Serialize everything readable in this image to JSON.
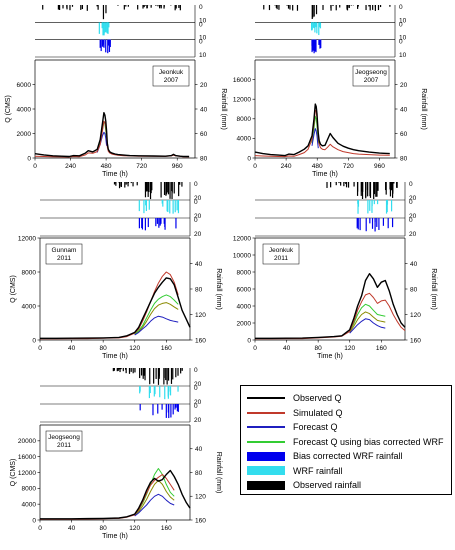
{
  "chart_data": [
    {
      "type": "line",
      "panel_label": [
        "Jeonkuk",
        "2007"
      ],
      "x": [
        0,
        60,
        120,
        180,
        230,
        260,
        300,
        340,
        360,
        390,
        420,
        440,
        455,
        465,
        472,
        478,
        483,
        488,
        495,
        505,
        520,
        540,
        560,
        600,
        640,
        700,
        800,
        880,
        920,
        935,
        950,
        980,
        1000,
        1040
      ],
      "xlim": [
        0,
        1080
      ],
      "xticks": [
        0,
        240,
        480,
        720,
        960
      ],
      "xlabel": "Time (h)",
      "ylim": [
        0,
        8000
      ],
      "yticks": [
        0,
        2000,
        4000,
        6000
      ],
      "ylabel": "Q (CMS)",
      "rain_ylim": [
        0,
        80
      ],
      "rain_ticks": [
        20,
        40,
        60,
        80
      ],
      "y2label": "Rainfall (mm)",
      "series": [
        {
          "name": "Observed Q",
          "color": "#000000",
          "values": [
            350,
            250,
            180,
            150,
            120,
            200,
            180,
            400,
            600,
            500,
            700,
            1500,
            2800,
            3700,
            3500,
            3000,
            2200,
            1200,
            700,
            500,
            400,
            330,
            280,
            240,
            200,
            180,
            160,
            150,
            200,
            300,
            200,
            150,
            130,
            120
          ]
        },
        {
          "name": "Simulated Q",
          "color": "#c0392b",
          "values": [
            150,
            120,
            100,
            90,
            80,
            120,
            110,
            250,
            420,
            380,
            520,
            1100,
            2200,
            3000,
            2900,
            2500,
            1800,
            900,
            550,
            400,
            320,
            260,
            220,
            190,
            170,
            150,
            140,
            130,
            170,
            240,
            170,
            130,
            110,
            100
          ]
        },
        {
          "name": "Forecast Q",
          "color": "#1f1fbf",
          "values": [
            null,
            null,
            null,
            null,
            null,
            null,
            null,
            null,
            null,
            null,
            450,
            1100,
            1800,
            2100,
            2000,
            1600,
            1000,
            null,
            null,
            null,
            null,
            null,
            null,
            null,
            null,
            null,
            null,
            null,
            null,
            null,
            null,
            null,
            null,
            null
          ]
        },
        {
          "name": "Forecast Q using bias corrected WRF",
          "color": "#33cc33",
          "values": [
            null,
            null,
            null,
            null,
            null,
            null,
            null,
            null,
            null,
            null,
            500,
            1300,
            2300,
            3000,
            2800,
            2200,
            1400,
            null,
            null,
            null,
            null,
            null,
            null,
            null,
            null,
            null,
            null,
            null,
            null,
            null,
            null,
            null,
            null,
            null
          ]
        }
      ]
    },
    {
      "type": "line",
      "panel_label": [
        "Jeogseong",
        "2007"
      ],
      "x": [
        0,
        60,
        120,
        180,
        230,
        260,
        300,
        340,
        380,
        410,
        440,
        455,
        465,
        472,
        478,
        483,
        488,
        495,
        505,
        520,
        540,
        560,
        580,
        600,
        640,
        680,
        720,
        760,
        800,
        880,
        960,
        1040
      ],
      "xlim": [
        0,
        1080
      ],
      "xticks": [
        0,
        240,
        480,
        720,
        960
      ],
      "xlabel": "Time (h)",
      "ylim": [
        0,
        20000
      ],
      "yticks": [
        0,
        4000,
        8000,
        12000,
        16000
      ],
      "ylabel": "",
      "rain_ylim": [
        0,
        80
      ],
      "rain_ticks": [
        20,
        40,
        60,
        80
      ],
      "y2label": "Rainfall (mm)",
      "series": [
        {
          "name": "Observed Q",
          "color": "#000000",
          "values": [
            1200,
            900,
            700,
            600,
            500,
            800,
            700,
            1200,
            1800,
            2500,
            4500,
            8000,
            11000,
            10500,
            9000,
            7000,
            5000,
            3500,
            2800,
            2500,
            2600,
            3800,
            5000,
            4200,
            3000,
            2400,
            2000,
            1700,
            1500,
            1200,
            1000,
            900
          ]
        },
        {
          "name": "Simulated Q",
          "color": "#c0392b",
          "values": [
            500,
            400,
            350,
            300,
            280,
            400,
            350,
            700,
            1100,
            1800,
            3800,
            7000,
            9800,
            9500,
            8000,
            6000,
            4200,
            2800,
            2100,
            1800,
            1700,
            2200,
            2800,
            2300,
            1700,
            1300,
            1100,
            900,
            800,
            700,
            600,
            550
          ]
        },
        {
          "name": "Forecast Q",
          "color": "#1f1fbf",
          "values": [
            null,
            null,
            null,
            null,
            null,
            null,
            null,
            null,
            null,
            null,
            2500,
            4800,
            6000,
            5500,
            4500,
            3200,
            2000,
            null,
            null,
            null,
            null,
            null,
            null,
            null,
            null,
            null,
            null,
            null,
            null,
            null,
            null,
            null
          ]
        },
        {
          "name": "Forecast Q using bias corrected WRF",
          "color": "#33cc33",
          "values": [
            null,
            null,
            null,
            null,
            null,
            null,
            null,
            null,
            null,
            null,
            3000,
            6000,
            8500,
            8000,
            6500,
            4800,
            3000,
            null,
            null,
            null,
            null,
            null,
            null,
            null,
            null,
            null,
            null,
            null,
            null,
            null,
            null,
            null
          ]
        }
      ]
    },
    {
      "type": "line",
      "panel_label": [
        "Gunnam",
        "2011"
      ],
      "x": [
        0,
        20,
        40,
        60,
        80,
        100,
        110,
        120,
        125,
        130,
        135,
        140,
        145,
        150,
        155,
        160,
        165,
        170,
        175,
        180,
        185,
        190
      ],
      "xlim": [
        0,
        190
      ],
      "xticks": [
        0,
        40,
        80,
        120,
        160
      ],
      "xlabel": "Time (h)",
      "ylim": [
        0,
        12000
      ],
      "yticks": [
        0,
        4000,
        8000,
        12000
      ],
      "ylabel": "Q (CMS)",
      "rain_ylim": [
        0,
        160
      ],
      "rain_ticks": [
        40,
        80,
        120,
        160
      ],
      "y2label": "Rainfall (mm)",
      "series": [
        {
          "name": "Observed Q",
          "color": "#000000",
          "values": [
            200,
            200,
            210,
            220,
            250,
            300,
            500,
            900,
            1500,
            2500,
            3500,
            4500,
            5500,
            6200,
            6800,
            7300,
            7200,
            6500,
            5000,
            3500,
            2500,
            1500
          ]
        },
        {
          "name": "Simulated Q",
          "color": "#c0392b",
          "values": [
            150,
            150,
            160,
            170,
            200,
            250,
            400,
            800,
            1300,
            2200,
            3300,
            4500,
            5700,
            6700,
            7500,
            8000,
            7700,
            6800,
            5300,
            null,
            null,
            null
          ]
        },
        {
          "name": "Forecast Q",
          "color": "#1f1fbf",
          "values": [
            null,
            null,
            null,
            null,
            null,
            null,
            null,
            600,
            900,
            1300,
            1700,
            2200,
            2600,
            2800,
            2700,
            2500,
            2300,
            2200,
            2100,
            null,
            null,
            null
          ]
        },
        {
          "name": "Forecast Q using bias corrected WRF",
          "color": "#33cc33",
          "values": [
            null,
            null,
            null,
            null,
            null,
            null,
            null,
            700,
            1100,
            1700,
            2600,
            3500,
            4300,
            4800,
            5100,
            5300,
            5100,
            4700,
            4200,
            null,
            null,
            null
          ]
        }
      ],
      "extra_series": [
        {
          "name": "Forecast Q (olive)",
          "color": "#8a8a00",
          "values": [
            null,
            null,
            null,
            null,
            null,
            null,
            null,
            650,
            1000,
            1500,
            2200,
            3000,
            3700,
            4100,
            4300,
            4400,
            4200,
            3900,
            3600,
            null,
            null,
            null
          ]
        }
      ]
    },
    {
      "type": "line",
      "panel_label": [
        "Jeonkuk",
        "2011"
      ],
      "x": [
        0,
        20,
        40,
        60,
        80,
        100,
        110,
        120,
        125,
        130,
        135,
        140,
        145,
        150,
        155,
        160,
        165,
        170,
        175,
        180,
        185,
        190
      ],
      "xlim": [
        0,
        190
      ],
      "xticks": [
        0,
        40,
        80,
        120,
        160
      ],
      "xlabel": "Time (h)",
      "ylim": [
        0,
        12000
      ],
      "yticks": [
        0,
        2000,
        4000,
        6000,
        8000,
        10000,
        12000
      ],
      "ylabel": "",
      "rain_ylim": [
        0,
        160
      ],
      "rain_ticks": [
        40,
        80,
        120,
        160
      ],
      "y2label": "Rainfall (mm)",
      "series": [
        {
          "name": "Observed Q",
          "color": "#000000",
          "values": [
            200,
            200,
            210,
            220,
            300,
            400,
            500,
            1200,
            2500,
            4000,
            5200,
            7000,
            7800,
            7200,
            6200,
            6800,
            7000,
            5800,
            4200,
            3000,
            2000,
            1500
          ]
        },
        {
          "name": "Simulated Q",
          "color": "#c0392b",
          "values": [
            150,
            150,
            160,
            170,
            250,
            350,
            450,
            1000,
            2100,
            3500,
            4500,
            5300,
            5500,
            5000,
            4300,
            4600,
            4700,
            4000,
            3000,
            2200,
            1500,
            1100
          ]
        },
        {
          "name": "Forecast Q",
          "color": "#1f1fbf",
          "values": [
            null,
            null,
            null,
            null,
            null,
            null,
            null,
            800,
            1300,
            1800,
            2200,
            2500,
            2400,
            2000,
            1700,
            1500,
            1400,
            null,
            null,
            null,
            null,
            null
          ]
        },
        {
          "name": "Forecast Q using bias corrected WRF",
          "color": "#33cc33",
          "values": [
            null,
            null,
            null,
            null,
            null,
            null,
            null,
            1000,
            1900,
            3000,
            3800,
            4200,
            4000,
            3500,
            3000,
            2900,
            2800,
            null,
            null,
            null,
            null,
            null
          ]
        }
      ],
      "extra_series": [
        {
          "name": "Forecast Q (olive)",
          "color": "#8a8a00",
          "values": [
            null,
            null,
            null,
            null,
            null,
            null,
            null,
            900,
            1600,
            2400,
            3000,
            3300,
            3100,
            2700,
            2300,
            2200,
            2100,
            null,
            null,
            null,
            null,
            null
          ]
        }
      ]
    },
    {
      "type": "line",
      "panel_label": [
        "Jeogseong",
        "2011"
      ],
      "x": [
        0,
        20,
        40,
        60,
        80,
        100,
        110,
        120,
        125,
        130,
        135,
        140,
        145,
        150,
        155,
        160,
        165,
        170,
        175,
        180,
        185,
        190
      ],
      "xlim": [
        0,
        190
      ],
      "xticks": [
        0,
        40,
        80,
        120,
        160
      ],
      "xlabel": "Time (h)",
      "ylim": [
        0,
        24000
      ],
      "yticks": [
        0,
        4000,
        8000,
        12000,
        16000,
        20000
      ],
      "ylabel": "Q (CMS)",
      "rain_ylim": [
        0,
        160
      ],
      "rain_ticks": [
        40,
        80,
        120,
        160
      ],
      "y2label": "Rainfall (mm)",
      "series": [
        {
          "name": "Observed Q",
          "color": "#000000",
          "values": [
            300,
            300,
            300,
            350,
            400,
            500,
            800,
            1500,
            3000,
            5000,
            7500,
            9500,
            10500,
            9800,
            10200,
            11500,
            12500,
            11000,
            9000,
            6500,
            4500,
            3000
          ]
        },
        {
          "name": "Simulated Q",
          "color": "#c0392b",
          "values": [
            200,
            200,
            200,
            250,
            300,
            400,
            700,
            1300,
            2600,
            4500,
            6800,
            8800,
            10000,
            10800,
            11500,
            10500,
            9000,
            7500,
            null,
            null,
            null,
            null
          ]
        },
        {
          "name": "Forecast Q",
          "color": "#1f1fbf",
          "values": [
            null,
            null,
            null,
            null,
            null,
            null,
            null,
            1000,
            1800,
            2800,
            3800,
            5000,
            6000,
            6500,
            6000,
            5000,
            4200,
            3800,
            null,
            null,
            null,
            null
          ]
        },
        {
          "name": "Forecast Q using bias corrected WRF",
          "color": "#33cc33",
          "values": [
            null,
            null,
            null,
            null,
            null,
            null,
            null,
            1200,
            2500,
            4200,
            6500,
            9000,
            11500,
            13000,
            11500,
            9000,
            7000,
            6000,
            null,
            null,
            null,
            null
          ]
        }
      ],
      "extra_series": [
        {
          "name": "Forecast Q (olive)",
          "color": "#8a8a00",
          "values": [
            null,
            null,
            null,
            null,
            null,
            null,
            null,
            1100,
            2100,
            3500,
            5200,
            7200,
            9000,
            10000,
            9000,
            7200,
            5800,
            5000,
            null,
            null,
            null,
            null
          ]
        }
      ]
    }
  ],
  "legend": {
    "entries": [
      {
        "label": "Observed Q",
        "kind": "line",
        "color": "#000000"
      },
      {
        "label": "Simulated Q",
        "kind": "line",
        "color": "#c0392b"
      },
      {
        "label": "Forecast Q",
        "kind": "line",
        "color": "#1f1fbf"
      },
      {
        "label": "Forecast Q using bias corrected WRF",
        "kind": "line",
        "color": "#33cc33"
      },
      {
        "label": "Bias corrected WRF rainfall",
        "kind": "fill",
        "color": "#0000ee"
      },
      {
        "label": "WRF rainfall",
        "kind": "fill",
        "color": "#33ddee"
      },
      {
        "label": "Observed rainfall",
        "kind": "fill",
        "color": "#000000"
      }
    ]
  },
  "rain_strip_ticks": {
    "top": [
      "0",
      "10"
    ],
    "mid": [
      "0",
      "10"
    ],
    "bot": [
      "0",
      "10"
    ]
  },
  "rain_strip_ticks_2011": {
    "top": [
      "0",
      "20"
    ],
    "mid": [
      "0",
      "20"
    ],
    "bot": [
      "0",
      "20"
    ]
  }
}
